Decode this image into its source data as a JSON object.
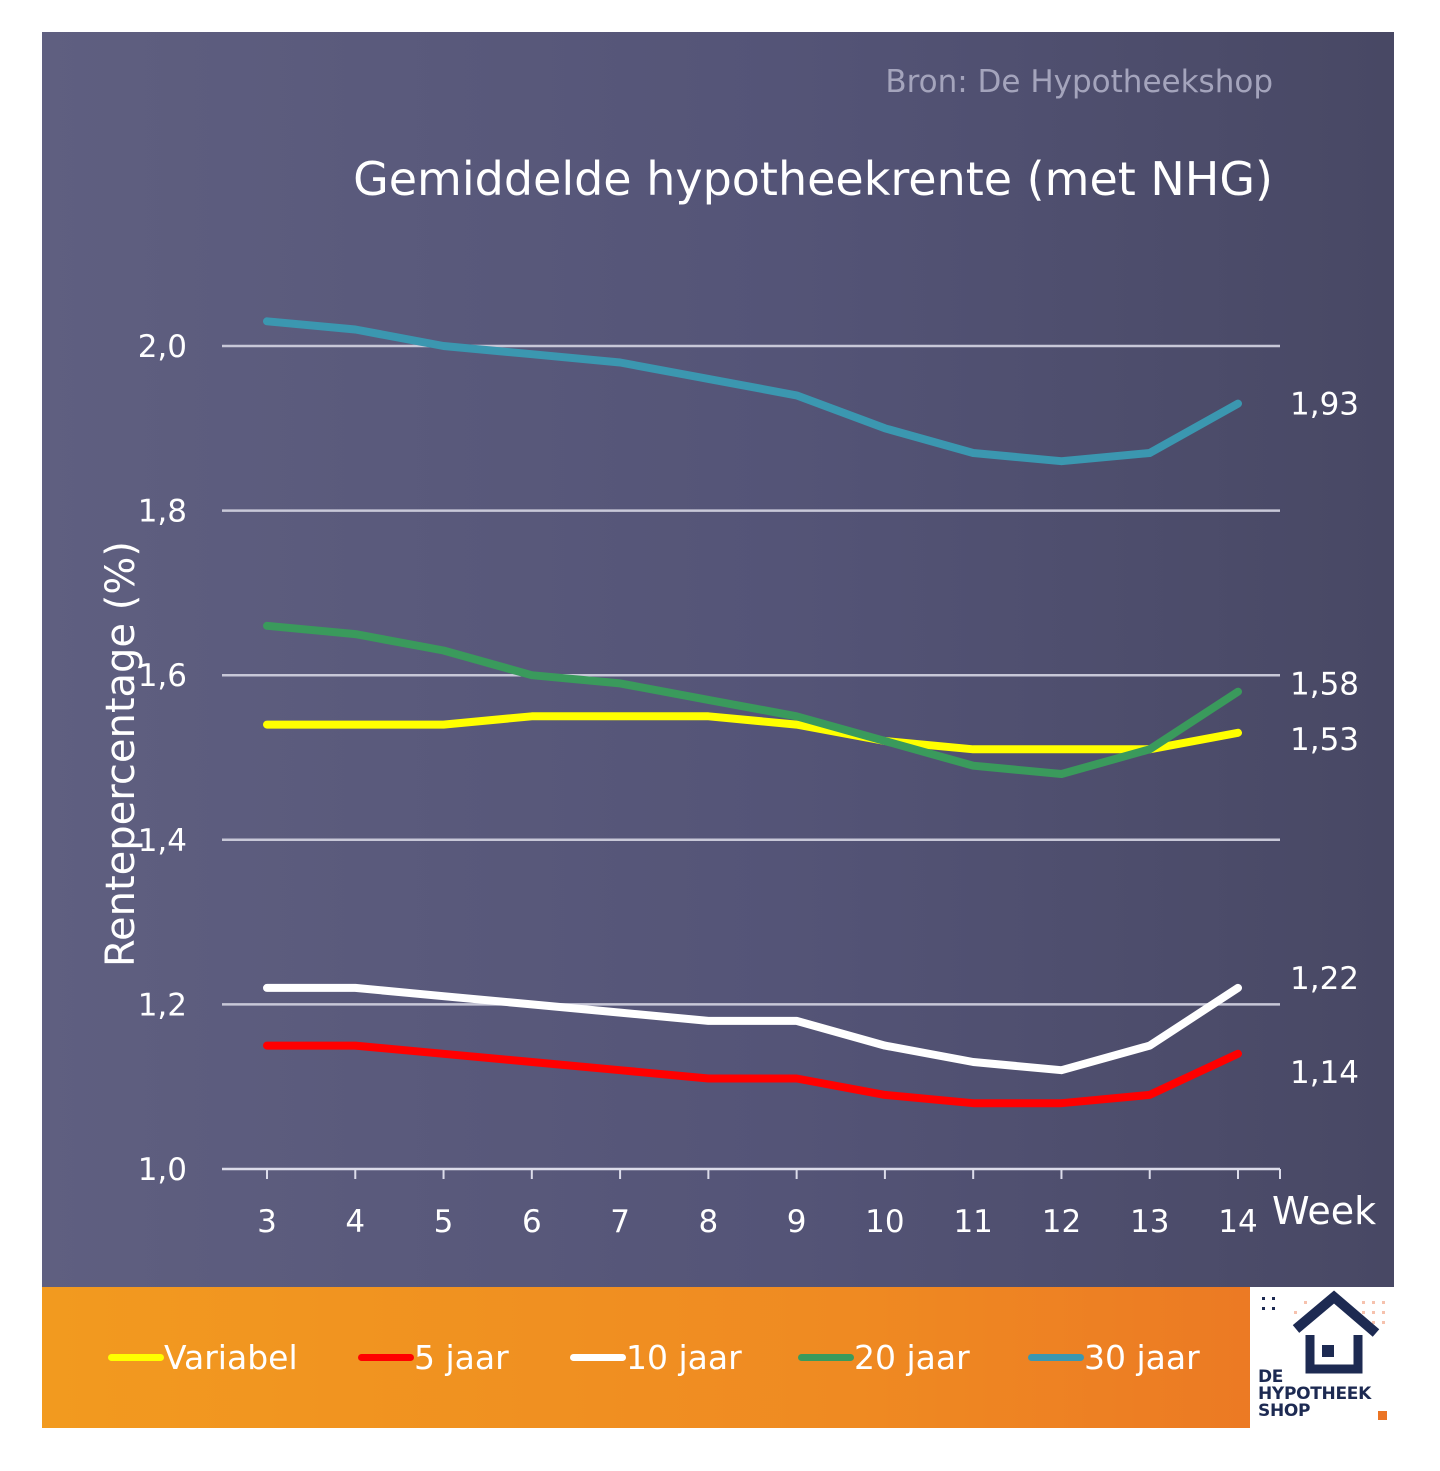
{
  "source_label": "Bron: De Hypotheekshop",
  "title": "Gemiddelde hypotheekrente (met NHG)",
  "colors": {
    "panel": "#585878",
    "legend_bar": "#ef8a22",
    "grid": "#c8c8d8",
    "text": "#ffffff"
  },
  "chart_data": {
    "type": "line",
    "title": "Gemiddelde hypotheekrente (met NHG)",
    "xlabel": "Week",
    "ylabel": "Rentepercentage (%)",
    "ylim": [
      1.0,
      2.0
    ],
    "yticks": [
      "1,0",
      "1,2",
      "1,4",
      "1,6",
      "1,8",
      "2,0"
    ],
    "yticks_values": [
      1.0,
      1.2,
      1.4,
      1.6,
      1.8,
      2.0
    ],
    "x": [
      3,
      4,
      5,
      6,
      7,
      8,
      9,
      10,
      11,
      12,
      13,
      14
    ],
    "grid": true,
    "legend_position": "bottom",
    "series": [
      {
        "name": "Variabel",
        "color": "#ffff00",
        "values": [
          1.54,
          1.54,
          1.54,
          1.55,
          1.55,
          1.55,
          1.54,
          1.52,
          1.51,
          1.51,
          1.51,
          1.53
        ],
        "end_label": "1,53"
      },
      {
        "name": "5 jaar",
        "color": "#ff0000",
        "values": [
          1.15,
          1.15,
          1.14,
          1.13,
          1.12,
          1.11,
          1.11,
          1.09,
          1.08,
          1.08,
          1.09,
          1.14
        ],
        "end_label": "1,14"
      },
      {
        "name": "10 jaar",
        "color": "#ffffff",
        "values": [
          1.22,
          1.22,
          1.21,
          1.2,
          1.19,
          1.18,
          1.18,
          1.15,
          1.13,
          1.12,
          1.15,
          1.22
        ],
        "end_label": "1,22"
      },
      {
        "name": "20 jaar",
        "color": "#3a9a5c",
        "values": [
          1.66,
          1.65,
          1.63,
          1.6,
          1.59,
          1.57,
          1.55,
          1.52,
          1.49,
          1.48,
          1.51,
          1.58
        ],
        "end_label": "1,58"
      },
      {
        "name": "30 jaar",
        "color": "#3b97b0",
        "values": [
          2.03,
          2.02,
          2.0,
          1.99,
          1.98,
          1.96,
          1.94,
          1.9,
          1.87,
          1.86,
          1.87,
          1.93
        ],
        "end_label": "1,93"
      }
    ]
  },
  "logo": {
    "lines": [
      "DE",
      "HYPOTHEEK",
      "SHOP"
    ],
    "house_icon": "house-icon"
  }
}
